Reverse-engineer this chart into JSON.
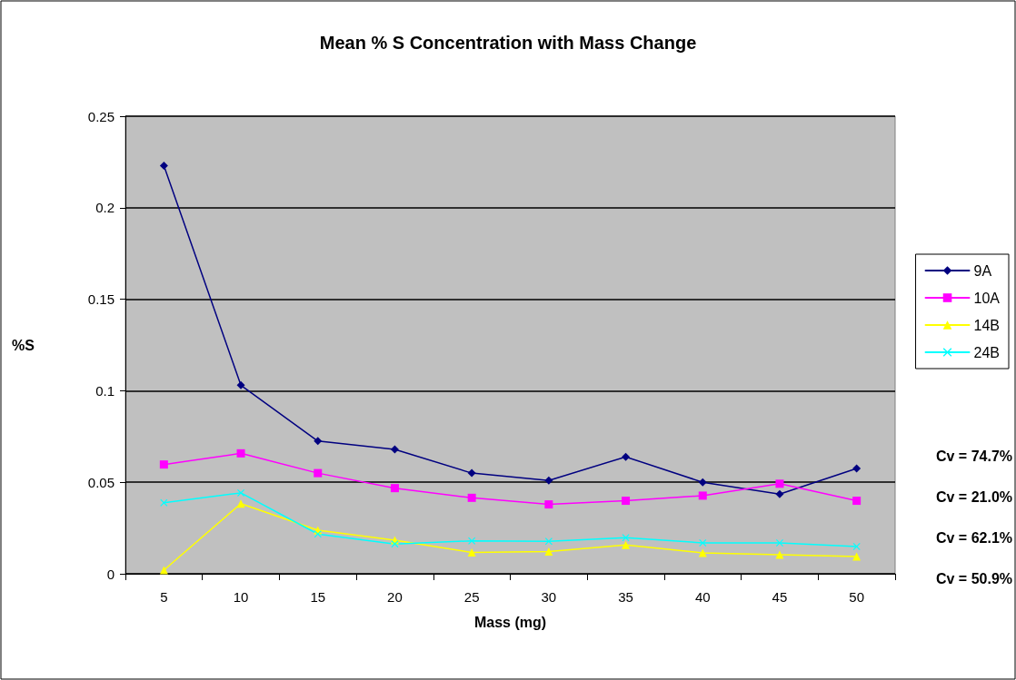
{
  "chart_data": {
    "type": "line",
    "title": "Mean % S Concentration with Mass Change",
    "xlabel": "Mass (mg)",
    "ylabel": "%S",
    "categories": [
      "5",
      "10",
      "15",
      "20",
      "25",
      "30",
      "35",
      "40",
      "45",
      "50"
    ],
    "series": [
      {
        "name": "9A",
        "color": "#000080",
        "marker": "diamond",
        "values": [
          0.223,
          0.103,
          0.0725,
          0.068,
          0.055,
          0.051,
          0.0639,
          0.05,
          0.0435,
          0.0575
        ]
      },
      {
        "name": "10A",
        "color": "#ff00ff",
        "marker": "square",
        "values": [
          0.0597,
          0.0658,
          0.055,
          0.0468,
          0.0415,
          0.0379,
          0.0399,
          0.0427,
          0.0492,
          0.0399
        ]
      },
      {
        "name": "14B",
        "color": "#ffff00",
        "marker": "triangle",
        "values": [
          0.002,
          0.0383,
          0.0238,
          0.0183,
          0.0117,
          0.0122,
          0.0158,
          0.0114,
          0.0104,
          0.0094
        ]
      },
      {
        "name": "24B",
        "color": "#00ffff",
        "marker": "cross",
        "values": [
          0.0388,
          0.0442,
          0.0217,
          0.0163,
          0.018,
          0.0177,
          0.0197,
          0.0169,
          0.0169,
          0.0149
        ]
      }
    ],
    "ylim": [
      0,
      0.25
    ],
    "yticks": [
      0,
      0.05,
      0.1,
      0.15,
      0.2,
      0.25
    ],
    "grid": "y",
    "legend": "right",
    "annotations": [
      "Cv = 74.7%",
      "Cv = 21.0%",
      "Cv = 62.1%",
      "Cv = 50.9%"
    ]
  }
}
